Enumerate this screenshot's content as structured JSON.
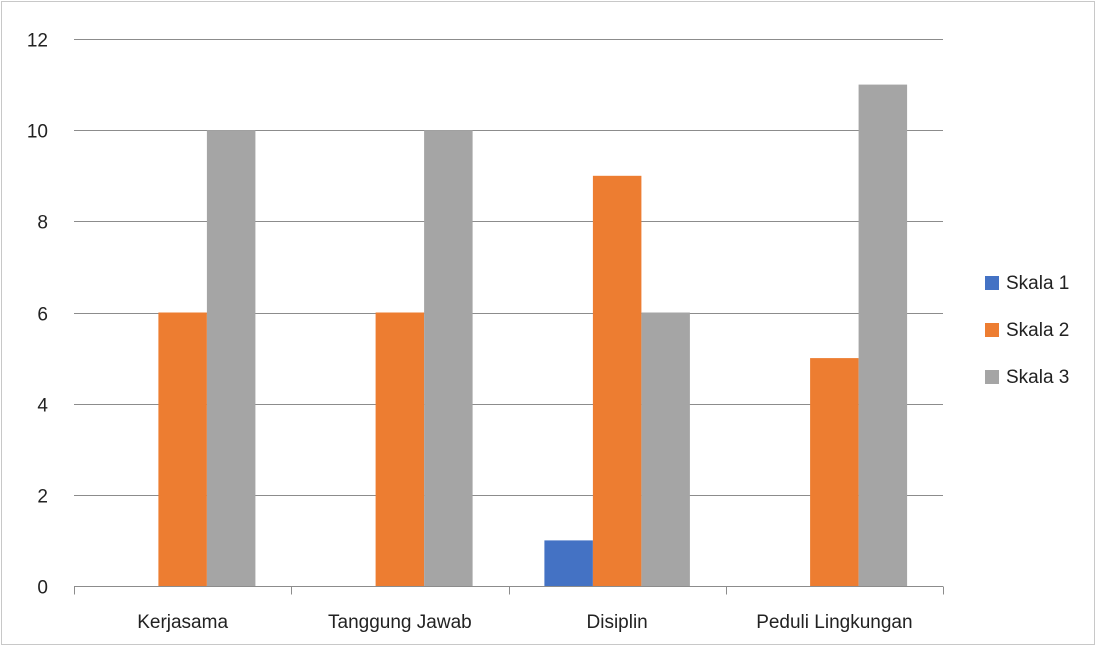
{
  "chart_data": {
    "type": "bar",
    "title": "",
    "xlabel": "",
    "ylabel": "",
    "categories": [
      "Kerjasama",
      "Tanggung Jawab",
      "Disiplin",
      "Peduli Lingkungan"
    ],
    "series": [
      {
        "name": "Skala 1",
        "color": "#4472c4",
        "values": [
          0,
          0,
          1,
          0
        ]
      },
      {
        "name": "Skala 2",
        "color": "#ed7d31",
        "values": [
          6,
          6,
          9,
          5
        ]
      },
      {
        "name": "Skala 3",
        "color": "#a5a5a5",
        "values": [
          10,
          10,
          6,
          11
        ]
      }
    ],
    "ylim": [
      0,
      12
    ],
    "yticks": [
      0,
      2,
      4,
      6,
      8,
      10,
      12
    ],
    "grid": true,
    "legend_position": "right"
  }
}
